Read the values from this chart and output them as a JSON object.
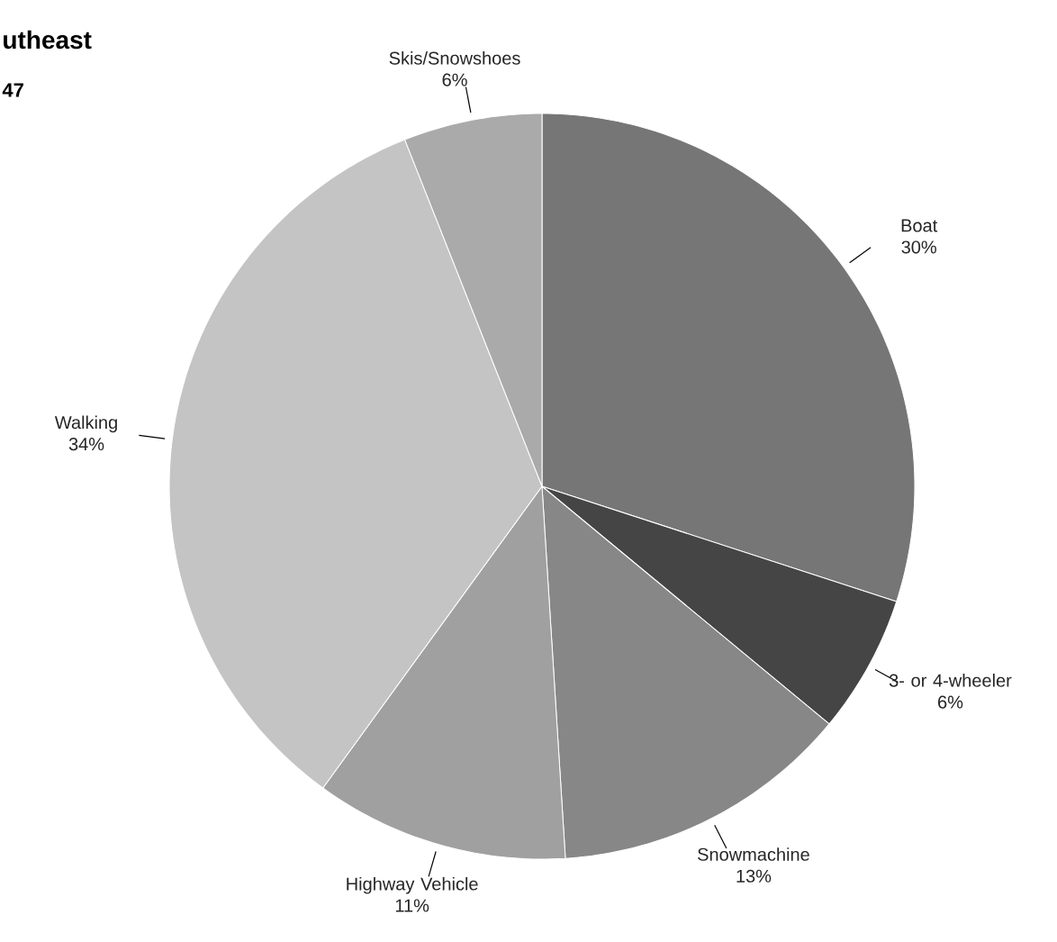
{
  "chart_data": {
    "type": "pie",
    "title": "utheast",
    "subtitle": "47",
    "categories": [
      "Boat",
      "3- or 4-wheeler",
      "Snowmachine",
      "Highway Vehicle",
      "Walking",
      "Skis/Snowshoes"
    ],
    "values": [
      30,
      6,
      13,
      11,
      34,
      6
    ],
    "value_labels": [
      "30%",
      "6%",
      "13%",
      "11%",
      "34%",
      "6%"
    ],
    "colors": [
      "#767676",
      "#454545",
      "#878787",
      "#a0a0a0",
      "#c4c4c4",
      "#aaaaaa"
    ]
  }
}
